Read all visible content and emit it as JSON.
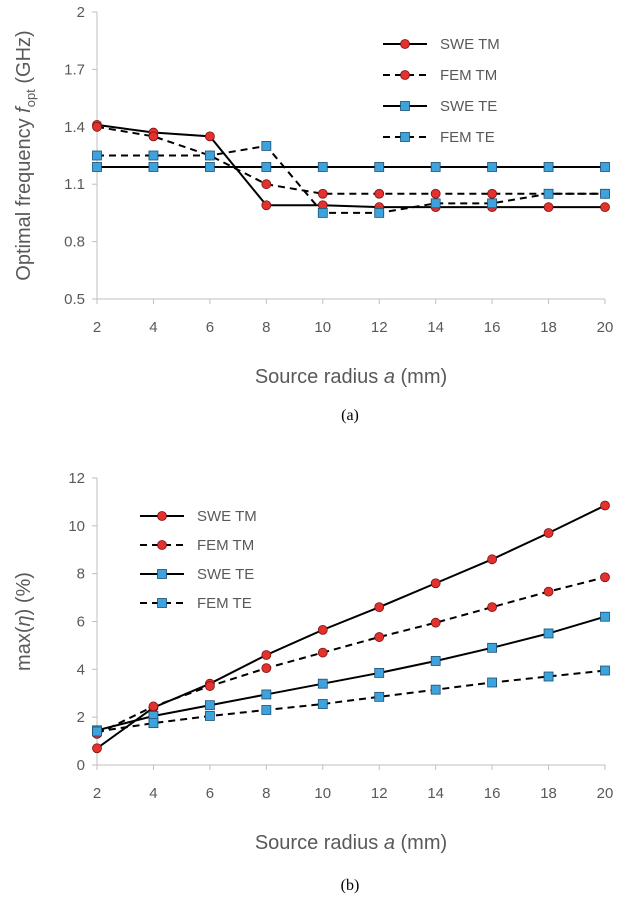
{
  "chart_data": [
    {
      "type": "line",
      "caption": "(a)",
      "xlabel": "Source radius a (mm)",
      "xlabel_parts": [
        "Source radius ",
        "a",
        " (mm)"
      ],
      "ylabel_parts": [
        "Optimal frequency ",
        "f",
        "opt",
        " (GHz)"
      ],
      "x": [
        2,
        4,
        6,
        8,
        10,
        12,
        14,
        16,
        18,
        20
      ],
      "xlim": [
        2,
        20
      ],
      "ylim": [
        0.5,
        2
      ],
      "xticks": [
        "2",
        "4",
        "6",
        "8",
        "10",
        "12",
        "14",
        "16",
        "18",
        "20"
      ],
      "yticks": [
        "0.5",
        "0.8",
        "1.1",
        "1.4",
        "1.7",
        "2"
      ],
      "ytick_values": [
        0.5,
        0.8,
        1.1,
        1.4,
        1.7,
        2.0
      ],
      "grid": false,
      "legend_position": "top-right",
      "series": [
        {
          "name": "SWE TM",
          "line": "solid",
          "marker": "circle",
          "values": [
            1.41,
            1.37,
            1.35,
            0.99,
            0.99,
            0.98,
            0.98,
            0.98,
            0.98,
            0.98
          ]
        },
        {
          "name": "FEM TM",
          "line": "dashed",
          "marker": "circle",
          "values": [
            1.4,
            1.35,
            1.25,
            1.1,
            1.05,
            1.05,
            1.05,
            1.05,
            1.05,
            1.05
          ]
        },
        {
          "name": "SWE TE",
          "line": "solid",
          "marker": "square",
          "values": [
            1.19,
            1.19,
            1.19,
            1.19,
            1.19,
            1.19,
            1.19,
            1.19,
            1.19,
            1.19
          ]
        },
        {
          "name": "FEM TE",
          "line": "dashed",
          "marker": "square",
          "values": [
            1.25,
            1.25,
            1.25,
            1.3,
            0.95,
            0.95,
            1.0,
            1.0,
            1.05,
            1.05
          ]
        }
      ]
    },
    {
      "type": "line",
      "caption": "(b)",
      "xlabel": "Source radius a (mm)",
      "xlabel_parts": [
        "Source radius ",
        "a",
        " (mm)"
      ],
      "ylabel_parts": [
        "max(",
        "η",
        ") (%)"
      ],
      "x": [
        2,
        4,
        6,
        8,
        10,
        12,
        14,
        16,
        18,
        20
      ],
      "xlim": [
        2,
        20
      ],
      "ylim": [
        0,
        12
      ],
      "xticks": [
        "2",
        "4",
        "6",
        "8",
        "10",
        "12",
        "14",
        "16",
        "18",
        "20"
      ],
      "yticks": [
        "0",
        "2",
        "4",
        "6",
        "8",
        "10",
        "12"
      ],
      "ytick_values": [
        0,
        2,
        4,
        6,
        8,
        10,
        12
      ],
      "grid": false,
      "legend_position": "top-left",
      "series": [
        {
          "name": "SWE TM",
          "line": "solid",
          "marker": "circle",
          "values": [
            0.7,
            2.4,
            3.4,
            4.6,
            5.65,
            6.6,
            7.6,
            8.6,
            9.7,
            10.85
          ]
        },
        {
          "name": "FEM TM",
          "line": "dashed",
          "marker": "circle",
          "values": [
            1.3,
            2.45,
            3.3,
            4.05,
            4.7,
            5.35,
            5.95,
            6.6,
            7.25,
            7.85
          ]
        },
        {
          "name": "SWE TE",
          "line": "solid",
          "marker": "square",
          "values": [
            1.45,
            2.05,
            2.5,
            2.95,
            3.4,
            3.85,
            4.35,
            4.9,
            5.5,
            6.2
          ]
        },
        {
          "name": "FEM TE",
          "line": "dashed",
          "marker": "square",
          "values": [
            1.4,
            1.75,
            2.05,
            2.3,
            2.55,
            2.85,
            3.15,
            3.45,
            3.7,
            3.95
          ]
        }
      ]
    }
  ],
  "colors": {
    "line": "#000000",
    "circle_fill": "#e3312d",
    "circle_edge": "#7a1111",
    "square_fill": "#3ea3dc",
    "square_edge": "#1a4f73",
    "axis": "#bfbfbf",
    "text": "#595959"
  }
}
